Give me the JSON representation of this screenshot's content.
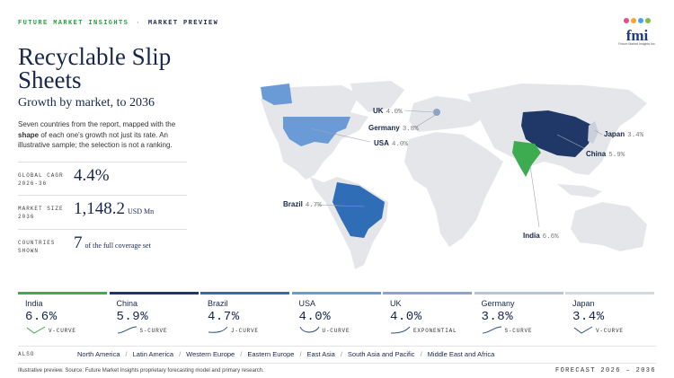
{
  "header": {
    "brand": "FUTURE MARKET INSIGHTS",
    "separator": "·",
    "section": "MARKET PREVIEW"
  },
  "logo": {
    "mark": "fmi",
    "caption": "Future Market Insights Inc."
  },
  "title": "Recyclable Slip Sheets",
  "subtitle": "Growth by market, to 2036",
  "description": {
    "before": "Seven countries from the report, mapped with the ",
    "emphasis": "shape",
    "after": " of each one's growth not just its rate. An illustrative sample; the selection is not a ranking."
  },
  "stats": [
    {
      "label": "GLOBAL CAGR 2026-36",
      "value": "4.4%"
    },
    {
      "label": "MARKET SIZE 2036",
      "value": "1,148.2",
      "unit": "USD Mn"
    },
    {
      "label": "COUNTRIES SHOWN",
      "value": "7",
      "unit": "of the full coverage set"
    }
  ],
  "map_labels": [
    {
      "country": "UK",
      "value": "4.0%"
    },
    {
      "country": "Germany",
      "value": "3.8%"
    },
    {
      "country": "USA",
      "value": "4.0%"
    },
    {
      "country": "Brazil",
      "value": "4.7%"
    },
    {
      "country": "India",
      "value": "6.6%"
    },
    {
      "country": "China",
      "value": "5.9%"
    },
    {
      "country": "Japan",
      "value": "3.4%"
    }
  ],
  "cards": [
    {
      "country": "India",
      "value": "6.6%",
      "curve": "V-CURVE"
    },
    {
      "country": "China",
      "value": "5.9%",
      "curve": "S-CURVE"
    },
    {
      "country": "Brazil",
      "value": "4.7%",
      "curve": "J-CURVE"
    },
    {
      "country": "USA",
      "value": "4.0%",
      "curve": "U-CURVE"
    },
    {
      "country": "UK",
      "value": "4.0%",
      "curve": "EXPONENTIAL"
    },
    {
      "country": "Germany",
      "value": "3.8%",
      "curve": "S-CURVE"
    },
    {
      "country": "Japan",
      "value": "3.4%",
      "curve": "V-CURVE"
    }
  ],
  "also": {
    "label": "ALSO",
    "regions": [
      "North America",
      "Latin America",
      "Western Europe",
      "Eastern Europe",
      "East Asia",
      "South Asia and Pacific",
      "Middle East and Africa"
    ]
  },
  "footer": {
    "note": "Illustrative preview. Source: Future Market Insights proprietary forecasting model and primary research.",
    "forecast": "FORECAST 2026 – 2036"
  }
}
